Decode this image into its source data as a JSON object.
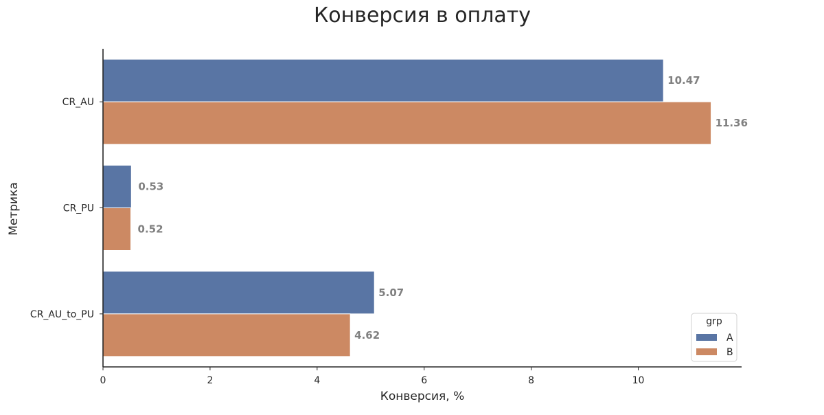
{
  "chart_data": {
    "type": "bar",
    "orientation": "horizontal",
    "title": "Конверсия в оплату",
    "xlabel": "Конверсия, %",
    "ylabel": "Метрика",
    "categories": [
      "CR_AU",
      "CR_PU",
      "CR_AU_to_PU"
    ],
    "series": [
      {
        "name": "A",
        "values": [
          10.47,
          0.53,
          5.07
        ],
        "color": "#5975a4"
      },
      {
        "name": "B",
        "values": [
          11.36,
          0.52,
          4.62
        ],
        "color": "#cc8963"
      }
    ],
    "data_labels": [
      [
        "10.47",
        "0.53",
        "5.07"
      ],
      [
        "11.36",
        "0.52",
        "4.62"
      ]
    ],
    "xticks": [
      0,
      2,
      4,
      6,
      8,
      10
    ],
    "xlim": [
      0,
      11.93
    ],
    "grid": false,
    "legend": {
      "title": "grp",
      "position": "bottom-right"
    }
  }
}
